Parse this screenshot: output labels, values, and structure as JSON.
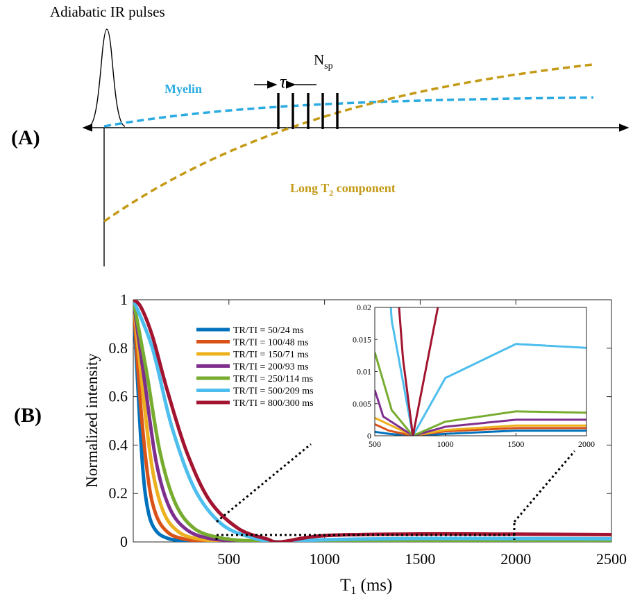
{
  "panel_a": {
    "label": "(A)",
    "pulse_label": "Adiabatic IR pulses",
    "myelin_label": "Myelin",
    "long_t2_label": "Long T",
    "long_t2_sub": "2",
    "long_t2_suffix": " component",
    "nsp_label": "N",
    "nsp_sub": "sp",
    "tau_label": "τ",
    "myelin_color": "#29abe2",
    "long_t2_color": "#c49a16"
  },
  "panel_b": {
    "label": "(B)"
  },
  "chart_data": [
    {
      "type": "line",
      "title": "",
      "xlabel": "T",
      "xlabel_sub": "1",
      "xlabel_suffix": " (ms)",
      "ylabel": "Normalized intensity",
      "xlim": [
        0,
        2500
      ],
      "ylim": [
        0,
        1
      ],
      "x_ticks": [
        500,
        1000,
        1500,
        2000,
        2500
      ],
      "x_tick_labels": [
        "500",
        "1000",
        "1500",
        "2000",
        "2500"
      ],
      "y_ticks": [
        0,
        0.2,
        0.4,
        0.6,
        0.8,
        1
      ],
      "y_tick_labels": [
        "0",
        "0.2",
        "0.4",
        "0.6",
        "0.8",
        "1"
      ],
      "legend_position": "top-left",
      "series": [
        {
          "name": "TR/TI = 50/24 ms",
          "color": "#0072bd",
          "x": [
            0,
            20,
            50,
            80,
            120,
            180,
            260,
            380,
            600,
            770,
            1000,
            1500,
            2000,
            2500
          ],
          "values": [
            1,
            0.7,
            0.3,
            0.12,
            0.045,
            0.015,
            0.004,
            0.001,
            0.0003,
            0,
            0.0003,
            0.0008,
            0.0008,
            0.0007
          ]
        },
        {
          "name": "TR/TI = 100/48 ms",
          "color": "#d95319",
          "x": [
            0,
            40,
            80,
            120,
            180,
            260,
            380,
            600,
            770,
            1000,
            1500,
            2000,
            2500
          ],
          "values": [
            1,
            0.55,
            0.25,
            0.11,
            0.04,
            0.013,
            0.003,
            0.0008,
            0,
            0.0007,
            0.0012,
            0.0012,
            0.0011
          ]
        },
        {
          "name": "TR/TI = 150/71 ms",
          "color": "#edb120",
          "x": [
            0,
            50,
            100,
            160,
            240,
            340,
            480,
            770,
            1000,
            1500,
            2000,
            2500
          ],
          "values": [
            1,
            0.62,
            0.3,
            0.12,
            0.04,
            0.013,
            0.003,
            0,
            0.0009,
            0.0016,
            0.0016,
            0.0015
          ]
        },
        {
          "name": "TR/TI = 200/93 ms",
          "color": "#7e2f8e",
          "x": [
            0,
            60,
            120,
            190,
            280,
            400,
            560,
            770,
            1000,
            1500,
            2000,
            2500
          ],
          "values": [
            1,
            0.66,
            0.33,
            0.14,
            0.05,
            0.014,
            0.003,
            0,
            0.0014,
            0.0025,
            0.0025,
            0.0024
          ]
        },
        {
          "name": "TR/TI = 250/114 ms",
          "color": "#77ac30",
          "x": [
            0,
            70,
            140,
            220,
            320,
            460,
            620,
            770,
            1000,
            1500,
            2000,
            2500
          ],
          "values": [
            1,
            0.7,
            0.37,
            0.16,
            0.055,
            0.016,
            0.004,
            0,
            0.0022,
            0.0038,
            0.0036,
            0.0035
          ]
        },
        {
          "name": "TR/TI = 500/209 ms",
          "color": "#4dbeee",
          "x": [
            0,
            100,
            200,
            320,
            460,
            620,
            770,
            1000,
            1500,
            2000,
            2500
          ],
          "values": [
            1,
            0.8,
            0.48,
            0.22,
            0.075,
            0.018,
            0,
            0.009,
            0.0143,
            0.0137,
            0.013
          ]
        },
        {
          "name": "TR/TI = 800/300 ms",
          "color": "#a2142f",
          "x": [
            0,
            40,
            100,
            180,
            280,
            400,
            550,
            700,
            770,
            1000,
            1500,
            2000,
            2500
          ],
          "values": [
            1,
            0.97,
            0.85,
            0.62,
            0.37,
            0.17,
            0.055,
            0.012,
            0,
            0.026,
            0.033,
            0.032,
            0.03
          ]
        }
      ]
    },
    {
      "type": "line",
      "title": "",
      "xlabel": "",
      "ylabel": "",
      "xlim": [
        500,
        2000
      ],
      "ylim": [
        0,
        0.02
      ],
      "x_ticks": [
        500,
        1000,
        1500,
        2000
      ],
      "x_tick_labels": [
        "500",
        "1000",
        "1500",
        "2000"
      ],
      "y_ticks": [
        0,
        0.005,
        0.01,
        0.015,
        0.02
      ],
      "y_tick_labels": [
        "0",
        "0.005",
        "0.01",
        "0.015",
        "0.02"
      ]
    }
  ]
}
